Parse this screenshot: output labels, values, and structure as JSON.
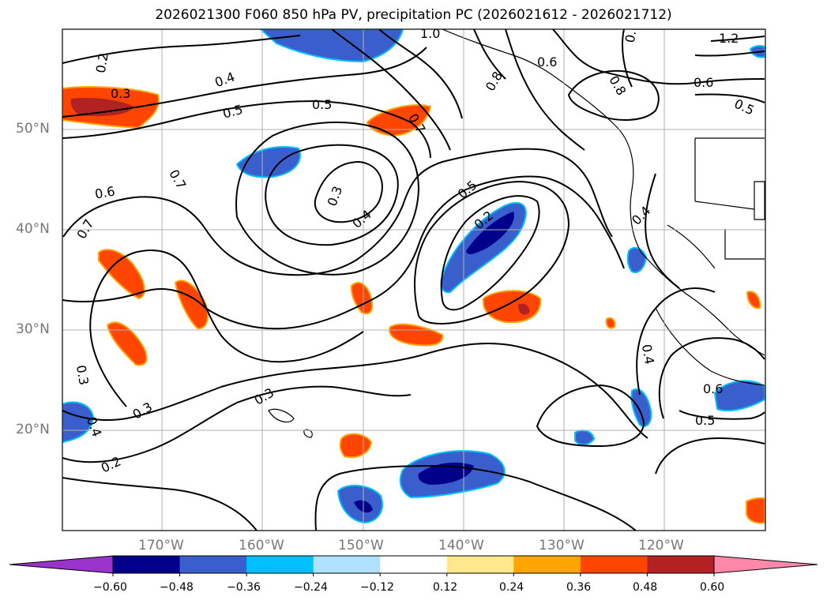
{
  "title": "2026021300 F060 850 hPa PV, precipitation PC (2026021612 - 2026021712)",
  "lat_labels": [
    "50°N",
    "40°N",
    "30°N",
    "20°N"
  ],
  "lon_labels": [
    "170°W",
    "160°W",
    "150°W",
    "140°W",
    "130°W",
    "120°W"
  ],
  "pv_contour_labels": [
    "0.2",
    "0.3",
    "0.4",
    "0.5",
    "0.6",
    "0.7",
    "0.8",
    "1.0",
    "1.2",
    "0.3",
    "0.4",
    "0.5",
    "0.6",
    "0.7",
    "0.2",
    "0.3",
    "0.4",
    "0.5",
    "0.2",
    "0.3",
    "0.4",
    "0.5",
    "0.6",
    "0.7",
    "0.8",
    "0.3",
    "0.4",
    "0.5",
    "0.6",
    "0.7"
  ],
  "colorbar": {
    "ticks": [
      "−0.60",
      "−0.48",
      "−0.36",
      "−0.24",
      "−0.12",
      "0.12",
      "0.24",
      "0.36",
      "0.48",
      "0.60"
    ],
    "colors": [
      "#9933cc",
      "#00008b",
      "#3a5fcd",
      "#00bfff",
      "#b0e2ff",
      "#ffffff",
      "#ffe88c",
      "#ffa500",
      "#ff4500",
      "#b22222",
      "#ff88aa"
    ]
  },
  "colors": {
    "ocean_bg": "#ffffff",
    "grid": "#b0b0b0",
    "contour": "#000000",
    "label_gray": "#777777"
  }
}
